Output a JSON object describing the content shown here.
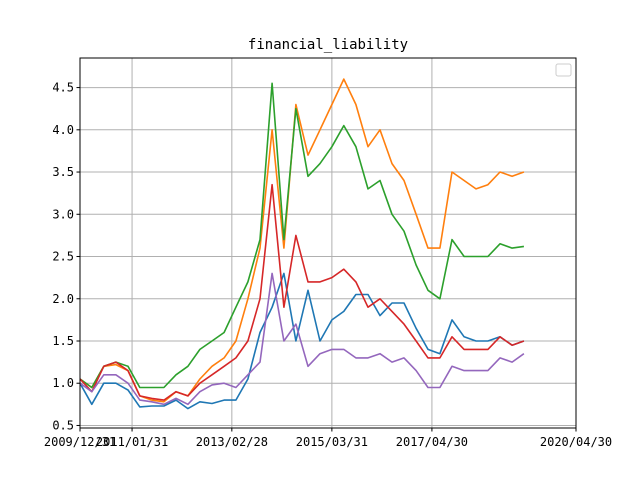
{
  "chart_data": {
    "type": "line",
    "title": "financial_liability",
    "xlabel": "",
    "ylabel": "",
    "x_tick_labels": [
      "2009/12/31",
      "2011/01/31",
      "2013/02/28",
      "2015/03/31",
      "2017/04/30",
      "2020/04/30"
    ],
    "y_ticks": [
      0.5,
      1.0,
      1.5,
      2.0,
      2.5,
      3.0,
      3.5,
      4.0,
      4.5
    ],
    "xlim": [
      "2009-12-31",
      "2020-04-30"
    ],
    "ylim": [
      0.47,
      4.85
    ],
    "grid": true,
    "legend": "upper right (empty)",
    "series": [
      {
        "color": "#1f77b4",
        "points": [
          [
            "2009-12-31",
            1.0
          ],
          [
            "2010-03-31",
            0.75
          ],
          [
            "2010-06-30",
            1.0
          ],
          [
            "2010-09-30",
            1.0
          ],
          [
            "2010-12-31",
            0.92
          ],
          [
            "2011-03-31",
            0.72
          ],
          [
            "2011-06-30",
            0.73
          ],
          [
            "2011-09-30",
            0.73
          ],
          [
            "2011-12-31",
            0.8
          ],
          [
            "2012-03-31",
            0.7
          ],
          [
            "2012-06-30",
            0.78
          ],
          [
            "2012-09-30",
            0.76
          ],
          [
            "2012-12-31",
            0.8
          ],
          [
            "2013-03-31",
            0.8
          ],
          [
            "2013-06-30",
            1.05
          ],
          [
            "2013-09-30",
            1.6
          ],
          [
            "2013-12-31",
            1.9
          ],
          [
            "2014-03-31",
            2.3
          ],
          [
            "2014-06-30",
            1.5
          ],
          [
            "2014-09-30",
            2.1
          ],
          [
            "2014-12-31",
            1.5
          ],
          [
            "2015-03-31",
            1.75
          ],
          [
            "2015-06-30",
            1.85
          ],
          [
            "2015-09-30",
            2.05
          ],
          [
            "2015-12-31",
            2.05
          ],
          [
            "2016-03-31",
            1.8
          ],
          [
            "2016-06-30",
            1.95
          ],
          [
            "2016-09-30",
            1.95
          ],
          [
            "2016-12-31",
            1.65
          ],
          [
            "2017-03-31",
            1.4
          ],
          [
            "2017-06-30",
            1.35
          ],
          [
            "2017-09-30",
            1.75
          ],
          [
            "2017-12-31",
            1.55
          ],
          [
            "2018-03-31",
            1.5
          ],
          [
            "2018-06-30",
            1.5
          ],
          [
            "2018-09-30",
            1.55
          ],
          [
            "2018-12-31",
            1.45
          ],
          [
            "2019-03-31",
            1.5
          ]
        ]
      },
      {
        "color": "#ff7f0e",
        "points": [
          [
            "2009-12-31",
            1.05
          ],
          [
            "2010-03-31",
            0.95
          ],
          [
            "2010-06-30",
            1.2
          ],
          [
            "2010-09-30",
            1.22
          ],
          [
            "2010-12-31",
            1.15
          ],
          [
            "2011-03-31",
            0.85
          ],
          [
            "2011-06-30",
            0.8
          ],
          [
            "2011-09-30",
            0.78
          ],
          [
            "2011-12-31",
            0.9
          ],
          [
            "2012-03-31",
            0.85
          ],
          [
            "2012-06-30",
            1.05
          ],
          [
            "2012-09-30",
            1.2
          ],
          [
            "2012-12-31",
            1.3
          ],
          [
            "2013-03-31",
            1.5
          ],
          [
            "2013-06-30",
            2.0
          ],
          [
            "2013-09-30",
            2.6
          ],
          [
            "2013-12-31",
            4.0
          ],
          [
            "2014-03-31",
            2.6
          ],
          [
            "2014-06-30",
            4.3
          ],
          [
            "2014-09-30",
            3.7
          ],
          [
            "2014-12-31",
            4.0
          ],
          [
            "2015-03-31",
            4.3
          ],
          [
            "2015-06-30",
            4.6
          ],
          [
            "2015-09-30",
            4.3
          ],
          [
            "2015-12-31",
            3.8
          ],
          [
            "2016-03-31",
            4.0
          ],
          [
            "2016-06-30",
            3.6
          ],
          [
            "2016-09-30",
            3.4
          ],
          [
            "2016-12-31",
            3.0
          ],
          [
            "2017-03-31",
            2.6
          ],
          [
            "2017-06-30",
            2.6
          ],
          [
            "2017-09-30",
            3.5
          ],
          [
            "2017-12-31",
            3.4
          ],
          [
            "2018-03-31",
            3.3
          ],
          [
            "2018-06-30",
            3.35
          ],
          [
            "2018-09-30",
            3.5
          ],
          [
            "2018-12-31",
            3.45
          ],
          [
            "2019-03-31",
            3.5
          ]
        ]
      },
      {
        "color": "#2ca02c",
        "points": [
          [
            "2009-12-31",
            1.05
          ],
          [
            "2010-03-31",
            0.95
          ],
          [
            "2010-06-30",
            1.2
          ],
          [
            "2010-09-30",
            1.25
          ],
          [
            "2010-12-31",
            1.2
          ],
          [
            "2011-03-31",
            0.95
          ],
          [
            "2011-06-30",
            0.95
          ],
          [
            "2011-09-30",
            0.95
          ],
          [
            "2011-12-31",
            1.1
          ],
          [
            "2012-03-31",
            1.2
          ],
          [
            "2012-06-30",
            1.4
          ],
          [
            "2012-09-30",
            1.5
          ],
          [
            "2012-12-31",
            1.6
          ],
          [
            "2013-03-31",
            1.9
          ],
          [
            "2013-06-30",
            2.2
          ],
          [
            "2013-09-30",
            2.7
          ],
          [
            "2013-12-31",
            4.55
          ],
          [
            "2014-03-31",
            2.7
          ],
          [
            "2014-06-30",
            4.25
          ],
          [
            "2014-09-30",
            3.45
          ],
          [
            "2014-12-31",
            3.6
          ],
          [
            "2015-03-31",
            3.8
          ],
          [
            "2015-06-30",
            4.05
          ],
          [
            "2015-09-30",
            3.8
          ],
          [
            "2015-12-31",
            3.3
          ],
          [
            "2016-03-31",
            3.4
          ],
          [
            "2016-06-30",
            3.0
          ],
          [
            "2016-09-30",
            2.8
          ],
          [
            "2016-12-31",
            2.4
          ],
          [
            "2017-03-31",
            2.1
          ],
          [
            "2017-06-30",
            2.0
          ],
          [
            "2017-09-30",
            2.7
          ],
          [
            "2017-12-31",
            2.5
          ],
          [
            "2018-03-31",
            2.5
          ],
          [
            "2018-06-30",
            2.5
          ],
          [
            "2018-09-30",
            2.65
          ],
          [
            "2018-12-31",
            2.6
          ],
          [
            "2019-03-31",
            2.62
          ]
        ]
      },
      {
        "color": "#d62728",
        "points": [
          [
            "2009-12-31",
            1.05
          ],
          [
            "2010-03-31",
            0.9
          ],
          [
            "2010-06-30",
            1.2
          ],
          [
            "2010-09-30",
            1.25
          ],
          [
            "2010-12-31",
            1.15
          ],
          [
            "2011-03-31",
            0.85
          ],
          [
            "2011-06-30",
            0.82
          ],
          [
            "2011-09-30",
            0.8
          ],
          [
            "2011-12-31",
            0.9
          ],
          [
            "2012-03-31",
            0.85
          ],
          [
            "2012-06-30",
            1.0
          ],
          [
            "2012-09-30",
            1.1
          ],
          [
            "2012-12-31",
            1.2
          ],
          [
            "2013-03-31",
            1.3
          ],
          [
            "2013-06-30",
            1.5
          ],
          [
            "2013-09-30",
            2.0
          ],
          [
            "2013-12-31",
            3.35
          ],
          [
            "2014-03-31",
            1.9
          ],
          [
            "2014-06-30",
            2.75
          ],
          [
            "2014-09-30",
            2.2
          ],
          [
            "2014-12-31",
            2.2
          ],
          [
            "2015-03-31",
            2.25
          ],
          [
            "2015-06-30",
            2.35
          ],
          [
            "2015-09-30",
            2.2
          ],
          [
            "2015-12-31",
            1.9
          ],
          [
            "2016-03-31",
            2.0
          ],
          [
            "2016-06-30",
            1.85
          ],
          [
            "2016-09-30",
            1.7
          ],
          [
            "2016-12-31",
            1.5
          ],
          [
            "2017-03-31",
            1.3
          ],
          [
            "2017-06-30",
            1.3
          ],
          [
            "2017-09-30",
            1.55
          ],
          [
            "2017-12-31",
            1.4
          ],
          [
            "2018-03-31",
            1.4
          ],
          [
            "2018-06-30",
            1.4
          ],
          [
            "2018-09-30",
            1.55
          ],
          [
            "2018-12-31",
            1.45
          ],
          [
            "2019-03-31",
            1.5
          ]
        ]
      },
      {
        "color": "#9467bd",
        "points": [
          [
            "2009-12-31",
            1.0
          ],
          [
            "2010-03-31",
            0.9
          ],
          [
            "2010-06-30",
            1.1
          ],
          [
            "2010-09-30",
            1.1
          ],
          [
            "2010-12-31",
            1.0
          ],
          [
            "2011-03-31",
            0.8
          ],
          [
            "2011-06-30",
            0.78
          ],
          [
            "2011-09-30",
            0.75
          ],
          [
            "2011-12-31",
            0.82
          ],
          [
            "2012-03-31",
            0.75
          ],
          [
            "2012-06-30",
            0.9
          ],
          [
            "2012-09-30",
            0.98
          ],
          [
            "2012-12-31",
            1.0
          ],
          [
            "2013-03-31",
            0.95
          ],
          [
            "2013-06-30",
            1.1
          ],
          [
            "2013-09-30",
            1.25
          ],
          [
            "2013-12-31",
            2.3
          ],
          [
            "2014-03-31",
            1.5
          ],
          [
            "2014-06-30",
            1.7
          ],
          [
            "2014-09-30",
            1.2
          ],
          [
            "2014-12-31",
            1.35
          ],
          [
            "2015-03-31",
            1.4
          ],
          [
            "2015-06-30",
            1.4
          ],
          [
            "2015-09-30",
            1.3
          ],
          [
            "2015-12-31",
            1.3
          ],
          [
            "2016-03-31",
            1.35
          ],
          [
            "2016-06-30",
            1.25
          ],
          [
            "2016-09-30",
            1.3
          ],
          [
            "2016-12-31",
            1.15
          ],
          [
            "2017-03-31",
            0.95
          ],
          [
            "2017-06-30",
            0.95
          ],
          [
            "2017-09-30",
            1.2
          ],
          [
            "2017-12-31",
            1.15
          ],
          [
            "2018-03-31",
            1.15
          ],
          [
            "2018-06-30",
            1.15
          ],
          [
            "2018-09-30",
            1.3
          ],
          [
            "2018-12-31",
            1.25
          ],
          [
            "2019-03-31",
            1.35
          ]
        ]
      }
    ]
  }
}
